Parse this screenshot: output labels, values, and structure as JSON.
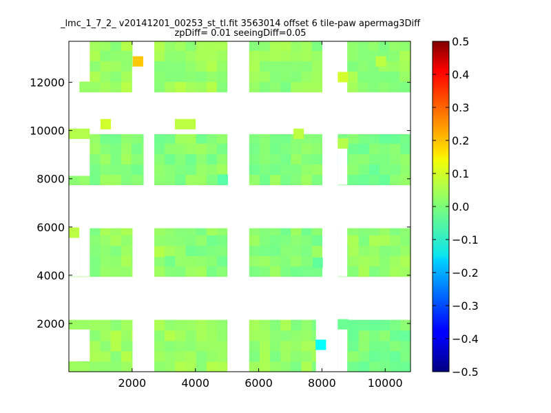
{
  "chart_data": {
    "type": "heatmap",
    "title": "_lmc_1_7_2_ v20141201_00253_st_tl.fit 3563014 offset 6 tile-paw apermag3Diff",
    "subtitle": "zpDiff= 0.01 seeingDiff=0.05",
    "xlabel": "",
    "ylabel": "",
    "xlim": [
      0,
      10800
    ],
    "ylim": [
      0,
      13700
    ],
    "x_ticks": [
      2000,
      4000,
      6000,
      8000,
      10000
    ],
    "y_ticks": [
      2000,
      4000,
      6000,
      8000,
      10000,
      12000
    ],
    "x_tick_labels": [
      "2000",
      "4000",
      "6000",
      "8000",
      "10000"
    ],
    "y_tick_labels": [
      "2000",
      "4000",
      "6000",
      "8000",
      "10000",
      "12000"
    ],
    "grid": false,
    "colormap": "jet",
    "colorbar": {
      "range": [
        -0.5,
        0.5
      ],
      "ticks": [
        0.5,
        0.4,
        0.3,
        0.2,
        0.1,
        0.0,
        -0.1,
        -0.2,
        -0.3,
        -0.4,
        -0.5
      ],
      "tick_labels": [
        "0.5",
        "0.4",
        "0.3",
        "0.2",
        "0.1",
        "0.0",
        "−0.1",
        "−0.2",
        "−0.3",
        "−0.4",
        "−0.5"
      ]
    },
    "cell_size": [
      330,
      430
    ],
    "blocks": [
      {
        "x": [
          0,
          2000
        ],
        "y": [
          0,
          2150
        ],
        "value": 0.03
      },
      {
        "x": [
          2700,
          5000
        ],
        "y": [
          0,
          2150
        ],
        "value": 0.03
      },
      {
        "x": [
          5700,
          7800
        ],
        "y": [
          0,
          2150
        ],
        "value": 0.02
      },
      {
        "x": [
          8500,
          10800
        ],
        "y": [
          0,
          2150
        ],
        "value": 0.0
      },
      {
        "x": [
          0,
          2000
        ],
        "y": [
          3950,
          5950
        ],
        "value": 0.02
      },
      {
        "x": [
          2700,
          5000
        ],
        "y": [
          3950,
          5950
        ],
        "value": 0.01
      },
      {
        "x": [
          5700,
          8000
        ],
        "y": [
          3950,
          5950
        ],
        "value": 0.01
      },
      {
        "x": [
          8500,
          10800
        ],
        "y": [
          3950,
          5950
        ],
        "value": 0.02
      },
      {
        "x": [
          0,
          2350
        ],
        "y": [
          7750,
          9850
        ],
        "value": 0.01
      },
      {
        "x": [
          2700,
          5000
        ],
        "y": [
          7750,
          9850
        ],
        "value": 0.01
      },
      {
        "x": [
          5700,
          8000
        ],
        "y": [
          7750,
          9850
        ],
        "value": 0.01
      },
      {
        "x": [
          8500,
          10800
        ],
        "y": [
          7750,
          9850
        ],
        "value": 0.0
      },
      {
        "x": [
          330,
          2000
        ],
        "y": [
          11600,
          13700
        ],
        "value": 0.03
      },
      {
        "x": [
          2700,
          5000
        ],
        "y": [
          11600,
          13700
        ],
        "value": 0.03
      },
      {
        "x": [
          5700,
          8000
        ],
        "y": [
          11600,
          13700
        ],
        "value": 0.02
      },
      {
        "x": [
          8800,
          10800
        ],
        "y": [
          11600,
          13700
        ],
        "value": 0.02
      }
    ],
    "cells": [
      {
        "x": 2020,
        "y": 12650,
        "value": 0.18
      },
      {
        "x": 8500,
        "y": 12000,
        "value": 0.08
      },
      {
        "x": 9700,
        "y": 12650,
        "value": 0.06
      },
      {
        "x": 1000,
        "y": 10050,
        "value": 0.08
      },
      {
        "x": 3350,
        "y": 10050,
        "value": 0.06
      },
      {
        "x": 3680,
        "y": 10050,
        "value": 0.06
      },
      {
        "x": 7100,
        "y": 9650,
        "value": 0.06
      },
      {
        "x": 0,
        "y": 9650,
        "value": 0.05
      },
      {
        "x": 330,
        "y": 9650,
        "value": 0.05
      },
      {
        "x": 8500,
        "y": 9250,
        "value": 0.05
      },
      {
        "x": 4700,
        "y": 7750,
        "value": -0.04
      },
      {
        "x": 0,
        "y": 5550,
        "value": 0.06
      },
      {
        "x": 2700,
        "y": 4750,
        "value": 0.05
      },
      {
        "x": 7700,
        "y": 4300,
        "value": -0.03
      },
      {
        "x": 8500,
        "y": 1750,
        "value": -0.02
      },
      {
        "x": 7800,
        "y": 900,
        "value": -0.12
      }
    ],
    "holes": [
      {
        "x": [
          0,
          330
        ],
        "y": [
          11600,
          13700
        ]
      },
      {
        "x": [
          330,
          660
        ],
        "y": [
          12030,
          13700
        ]
      },
      {
        "x": [
          2000,
          2700
        ],
        "y": [
          11600,
          12650
        ]
      },
      {
        "x": [
          2370,
          2700
        ],
        "y": [
          12650,
          13700
        ]
      },
      {
        "x": [
          0,
          660
        ],
        "y": [
          8120,
          9650
        ]
      },
      {
        "x": [
          0,
          330
        ],
        "y": [
          3950,
          5550
        ]
      },
      {
        "x": [
          330,
          660
        ],
        "y": [
          3950,
          6000
        ]
      },
      {
        "x": [
          0,
          660
        ],
        "y": [
          430,
          1750
        ]
      },
      {
        "x": [
          8500,
          8800
        ],
        "y": [
          7750,
          9250
        ]
      },
      {
        "x": [
          8500,
          8800
        ],
        "y": [
          3950,
          5950
        ]
      },
      {
        "x": [
          8500,
          8800
        ],
        "y": [
          0,
          1750
        ]
      }
    ]
  }
}
